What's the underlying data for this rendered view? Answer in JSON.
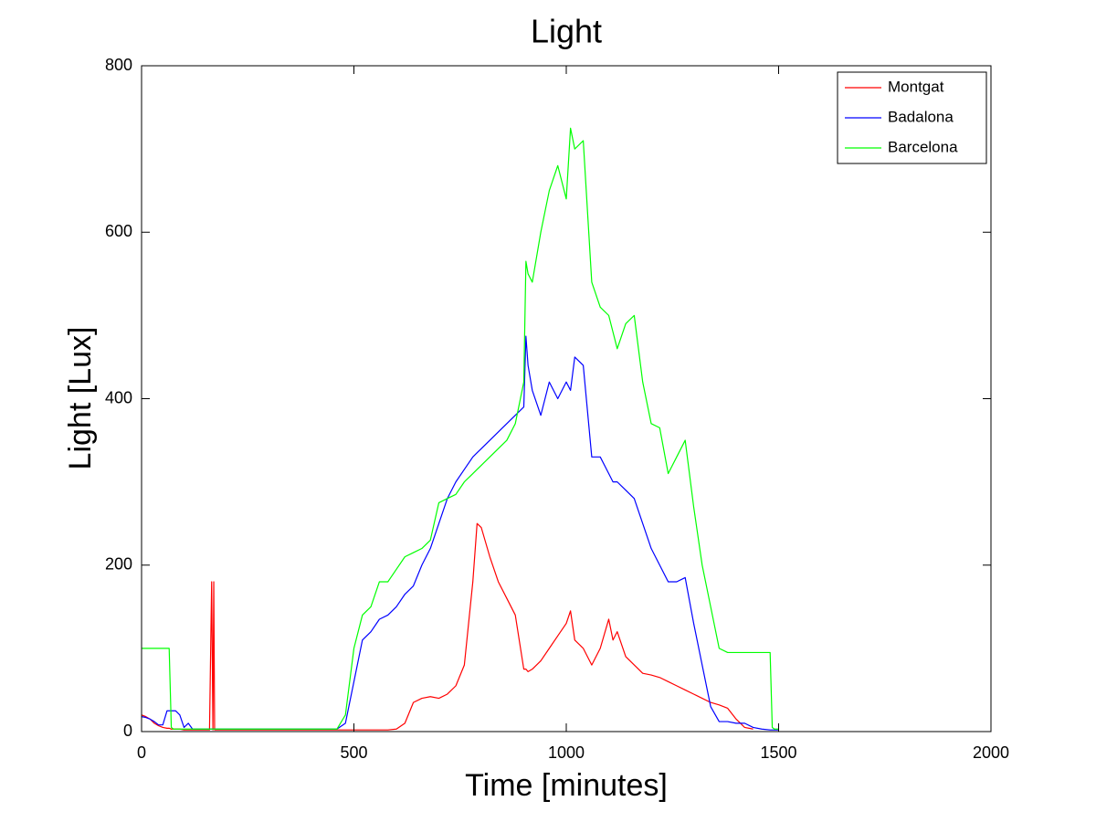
{
  "chart_data": {
    "type": "line",
    "title": "Light",
    "x_label": "Time [minutes]",
    "y_label": "Light [Lux]",
    "x": [
      0,
      10,
      20,
      30,
      40,
      50,
      60,
      65,
      70,
      75,
      80,
      90,
      100,
      110,
      120,
      130,
      140,
      160,
      165,
      168,
      170,
      172,
      175,
      180,
      200,
      250,
      300,
      350,
      400,
      440,
      460,
      480,
      500,
      520,
      540,
      560,
      580,
      600,
      620,
      640,
      660,
      680,
      700,
      720,
      740,
      760,
      780,
      790,
      800,
      820,
      840,
      860,
      880,
      900,
      905,
      910,
      920,
      940,
      960,
      980,
      1000,
      1010,
      1020,
      1040,
      1060,
      1080,
      1100,
      1110,
      1120,
      1140,
      1160,
      1180,
      1200,
      1220,
      1240,
      1260,
      1280,
      1300,
      1320,
      1340,
      1360,
      1380,
      1400,
      1420,
      1440,
      1460,
      1480,
      1485,
      1490,
      1500
    ],
    "series": [
      {
        "name": "Montgat",
        "color": "#ff0000",
        "values": [
          20,
          18,
          15,
          10,
          7,
          5,
          4,
          4,
          3,
          3,
          3,
          3,
          2,
          2,
          2,
          2,
          2,
          2,
          180,
          2,
          180,
          2,
          2,
          2,
          2,
          2,
          2,
          2,
          2,
          2,
          2,
          2,
          2,
          2,
          2,
          2,
          2,
          3,
          10,
          35,
          40,
          42,
          40,
          45,
          55,
          80,
          180,
          250,
          245,
          210,
          180,
          160,
          140,
          75,
          75,
          72,
          75,
          85,
          100,
          115,
          130,
          145,
          110,
          100,
          80,
          100,
          135,
          110,
          120,
          90,
          80,
          70,
          68,
          65,
          60,
          55,
          50,
          45,
          40,
          35,
          32,
          28,
          15,
          5,
          3,
          null,
          null,
          null,
          null,
          null
        ]
      },
      {
        "name": "Badalona",
        "color": "#0000ff",
        "values": [
          18,
          17,
          15,
          12,
          8,
          8,
          25,
          25,
          25,
          25,
          25,
          20,
          5,
          10,
          3,
          3,
          3,
          3,
          3,
          3,
          3,
          3,
          3,
          3,
          3,
          3,
          3,
          3,
          3,
          3,
          3,
          10,
          60,
          110,
          120,
          135,
          140,
          150,
          165,
          175,
          200,
          220,
          250,
          280,
          300,
          315,
          330,
          335,
          340,
          350,
          360,
          370,
          380,
          390,
          475,
          440,
          410,
          380,
          420,
          400,
          420,
          410,
          450,
          440,
          330,
          330,
          310,
          300,
          300,
          290,
          280,
          250,
          220,
          200,
          180,
          180,
          185,
          130,
          80,
          30,
          12,
          12,
          10,
          10,
          5,
          3,
          2,
          2,
          2,
          2
        ]
      },
      {
        "name": "Barcelona",
        "color": "#00ff00",
        "values": [
          100,
          100,
          100,
          100,
          100,
          100,
          100,
          100,
          5,
          3,
          3,
          3,
          3,
          3,
          3,
          3,
          3,
          3,
          3,
          3,
          3,
          3,
          3,
          3,
          3,
          3,
          3,
          3,
          3,
          3,
          3,
          20,
          100,
          140,
          150,
          180,
          180,
          195,
          210,
          215,
          220,
          230,
          275,
          280,
          285,
          300,
          310,
          315,
          320,
          330,
          340,
          350,
          370,
          420,
          565,
          550,
          540,
          600,
          650,
          680,
          640,
          725,
          700,
          710,
          540,
          510,
          500,
          480,
          460,
          490,
          500,
          420,
          370,
          365,
          310,
          330,
          350,
          270,
          200,
          150,
          100,
          95,
          95,
          95,
          95,
          95,
          95,
          5,
          3,
          3
        ]
      }
    ],
    "xlim": [
      0,
      2000
    ],
    "xticks": [
      0,
      500,
      1000,
      1500,
      2000
    ],
    "ylim": [
      0,
      800
    ],
    "yticks": [
      0,
      200,
      400,
      600,
      800
    ],
    "legend": "upper right"
  }
}
